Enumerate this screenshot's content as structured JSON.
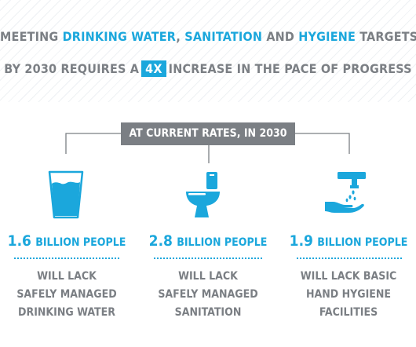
{
  "headline": {
    "line1_pre": "MEETING",
    "line1_water": "DRINKING WATER",
    "line1_comma": ",",
    "line1_sanitation": "SANITATION",
    "line1_and": "AND",
    "line1_hygiene": "HYGIENE",
    "line1_post": "TARGETS",
    "line2_pre": "BY 2030 REQUIRES A",
    "line2_highlight": "4X",
    "line2_post": "INCREASE IN THE PACE OF PROGRESS"
  },
  "rate_label": "AT CURRENT RATES, IN 2030",
  "columns": [
    {
      "icon": "water-glass-icon",
      "number": "1.6",
      "unit": "BILLION PEOPLE",
      "lines": [
        "WILL LACK",
        "SAFELY MANAGED",
        "DRINKING WATER"
      ]
    },
    {
      "icon": "toilet-icon",
      "number": "2.8",
      "unit": "BILLION PEOPLE",
      "lines": [
        "WILL LACK",
        "SAFELY MANAGED",
        "SANITATION"
      ]
    },
    {
      "icon": "handwashing-icon",
      "number": "1.9",
      "unit": "BILLION PEOPLE",
      "lines": [
        "WILL LACK BASIC",
        "HAND HYGIENE",
        "FACILITIES"
      ]
    }
  ],
  "colors": {
    "accent": "#1ba7dc",
    "gray": "#7b7f84"
  }
}
